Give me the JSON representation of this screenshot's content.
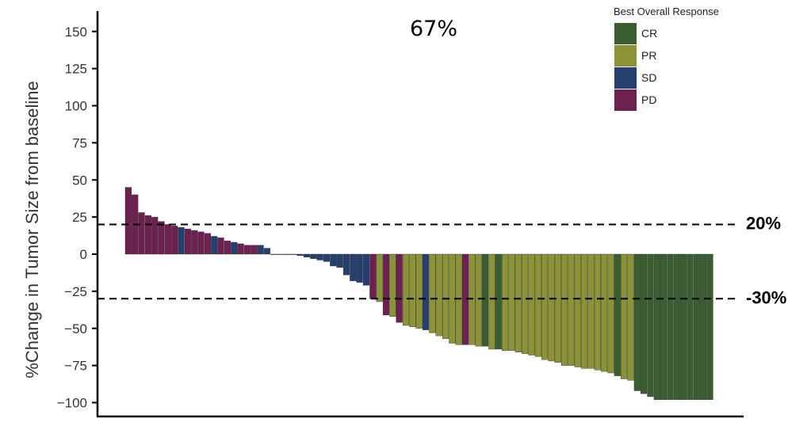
{
  "chart_data": {
    "type": "bar",
    "ylabel": "%Change in Tumor Size from baseline",
    "xlabel": "",
    "ylim": [
      -105,
      160
    ],
    "yticks": [
      150,
      125,
      100,
      75,
      50,
      25,
      0,
      -25,
      -50,
      -75,
      -100
    ],
    "ytick_labels": [
      "150",
      "125",
      "100",
      "75",
      "50",
      "25",
      "0",
      "−25",
      "−50",
      "−75",
      "−100"
    ],
    "annotation": "67%",
    "reference_lines": [
      {
        "value": 20,
        "label": "20%"
      },
      {
        "value": -30,
        "label": "-30%"
      }
    ],
    "legend": {
      "title": "Best Overall Response",
      "placement": "top-right",
      "entries": [
        {
          "key": "CR",
          "label": "CR",
          "color": "#3b5e31"
        },
        {
          "key": "PR",
          "label": "PR",
          "color": "#8b9336"
        },
        {
          "key": "SD",
          "label": "SD",
          "color": "#253f6e"
        },
        {
          "key": "PD",
          "label": "PD",
          "color": "#6e2150"
        }
      ]
    },
    "values": [
      45,
      40,
      28,
      26,
      25,
      22,
      20,
      19,
      18,
      17,
      16,
      15,
      14,
      12,
      11,
      9,
      8,
      7,
      6,
      6,
      6,
      4,
      0,
      0,
      0,
      0,
      -1,
      -2,
      -3,
      -4,
      -5,
      -8,
      -9,
      -14,
      -18,
      -19,
      -21,
      -30,
      -32,
      -41,
      -42,
      -46,
      -48,
      -49,
      -50,
      -51,
      -53,
      -55,
      -57,
      -60,
      -61,
      -61,
      -61,
      -62,
      -62,
      -64,
      -64,
      -65,
      -65,
      -66,
      -67,
      -68,
      -69,
      -71,
      -72,
      -73,
      -75,
      -75,
      -76,
      -77,
      -77,
      -78,
      -79,
      -80,
      -82,
      -84,
      -85,
      -92,
      -94,
      -96,
      -98,
      -98,
      -98,
      -98,
      -98,
      -98,
      -98,
      -98,
      -98
    ],
    "responses": [
      "PD",
      "PD",
      "PD",
      "PD",
      "PD",
      "PD",
      "PD",
      "PD",
      "SD",
      "PD",
      "PD",
      "PD",
      "PD",
      "SD",
      "PD",
      "PD",
      "SD",
      "PD",
      "PD",
      "PD",
      "SD",
      "SD",
      "SD",
      "SD",
      "SD",
      "SD",
      "SD",
      "SD",
      "SD",
      "SD",
      "SD",
      "SD",
      "SD",
      "SD",
      "SD",
      "SD",
      "SD",
      "PD",
      "PR",
      "PD",
      "PR",
      "PD",
      "PR",
      "PR",
      "PR",
      "SD",
      "PR",
      "PR",
      "PR",
      "PR",
      "PR",
      "PD",
      "PR",
      "PR",
      "CR",
      "PR",
      "CR",
      "PR",
      "PR",
      "PR",
      "PR",
      "PR",
      "PR",
      "PR",
      "PR",
      "PR",
      "PR",
      "PR",
      "PR",
      "PR",
      "PR",
      "PR",
      "PR",
      "PR",
      "CR",
      "PR",
      "PR",
      "CR",
      "CR",
      "CR",
      "CR",
      "CR",
      "CR",
      "CR",
      "CR",
      "CR",
      "CR",
      "CR",
      "CR"
    ]
  }
}
